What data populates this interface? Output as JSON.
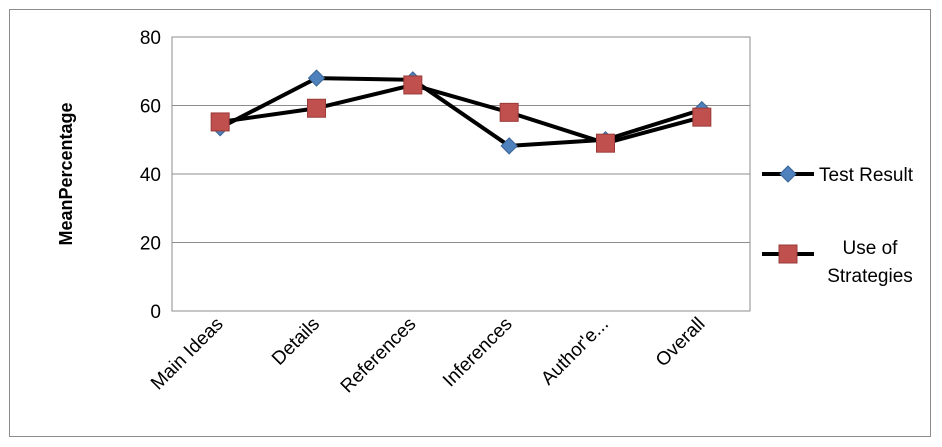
{
  "chart_data": {
    "type": "line",
    "categories": [
      "Main Ideas",
      "Details",
      "References",
      "Inferences",
      "Author'e...",
      "Overall"
    ],
    "series": [
      {
        "name": "Test Result",
        "values": [
          53.5,
          68,
          67.5,
          48.2,
          50,
          58.8
        ],
        "color": "#4f81bd",
        "marker": "diamond"
      },
      {
        "name": "Use of Strategies",
        "values": [
          55.2,
          59.2,
          66,
          58,
          49,
          56.6
        ],
        "color": "#c0504d",
        "marker": "square"
      }
    ],
    "line_color": "#000000",
    "title": "",
    "xlabel": "",
    "ylabel": "MeanPercentage",
    "ylim": [
      0,
      80
    ],
    "yticks": [
      "0",
      "20",
      "40",
      "60",
      "80"
    ],
    "grid": true,
    "legend_position": "right"
  }
}
